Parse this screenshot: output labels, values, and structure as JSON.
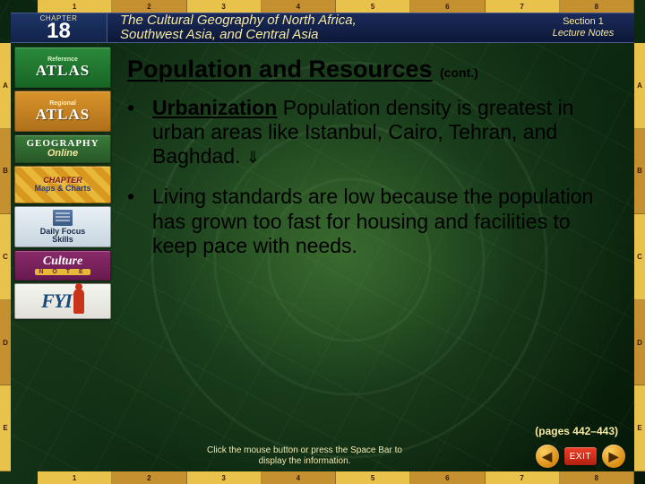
{
  "ruler": {
    "top": [
      "1",
      "2",
      "3",
      "4",
      "5",
      "6",
      "7",
      "8"
    ],
    "bottom": [
      "1",
      "2",
      "3",
      "4",
      "5",
      "6",
      "7",
      "8"
    ],
    "left": [
      "A",
      "B",
      "C",
      "D",
      "E"
    ],
    "right": [
      "A",
      "B",
      "C",
      "D",
      "E"
    ],
    "color_light": "#e8c24a",
    "color_dark": "#c49030"
  },
  "header": {
    "chapter_label": "CHAPTER",
    "chapter_number": "18",
    "title_line1": "The Cultural Geography of North Africa,",
    "title_line2": "Southwest Asia, and Central Asia",
    "section_line1": "Section 1",
    "section_line2": "Lecture Notes",
    "bg": "#14245a",
    "text_color": "#f5e8a0"
  },
  "sidebar": [
    {
      "id": "reference-atlas",
      "small": "Reference",
      "big": "ATLAS",
      "bg": "#209030"
    },
    {
      "id": "regional-atlas",
      "small": "Regional",
      "big": "ATLAS",
      "bg": "#d8942a"
    },
    {
      "id": "geography-online",
      "line1": "GEOGRAPHY",
      "line2": "Online",
      "bg": "#3a7a3a"
    },
    {
      "id": "chapter-maps-charts",
      "line1": "CHAPTER",
      "line2": "Maps & Charts",
      "bg": "#e8b838"
    },
    {
      "id": "daily-focus-skills",
      "line1": "Daily",
      "line2": "Focus",
      "line3": "Skills",
      "bg": "#d8e4ee"
    },
    {
      "id": "culture-note",
      "line1": "Culture",
      "line2": "N O T E",
      "bg": "#8a2a6a"
    },
    {
      "id": "fyi",
      "text": "FYI",
      "bg": "#f0f0ea",
      "accent": "#c8341a"
    }
  ],
  "content": {
    "title": "Population and Resources",
    "title_cont": "(cont.)",
    "bullets": [
      {
        "term": "Urbanization",
        "rest": "  Population density is greatest in urban areas like Istanbul, Cairo, Tehran, and Baghdad.",
        "has_arrow": true
      },
      {
        "term": "",
        "rest": "Living standards are low because the population has grown too fast for housing and facilities to keep pace with needs.",
        "has_arrow": false
      }
    ],
    "title_fontsize": 27,
    "body_fontsize": 23,
    "text_color": "#000000"
  },
  "pages_ref": "(pages 442–443)",
  "footer_hint": "Click the mouse button or press the Space Bar to display the information.",
  "nav": {
    "prev_glyph": "◀",
    "exit_label": "EXIT",
    "next_glyph": "▶",
    "arrow_bg": "#e8a020",
    "exit_bg": "#d83418"
  },
  "colors": {
    "page_bg": "#0a1a0a",
    "globe_green": "#2a6a2a",
    "accent_yellow": "#f5e8a0"
  }
}
